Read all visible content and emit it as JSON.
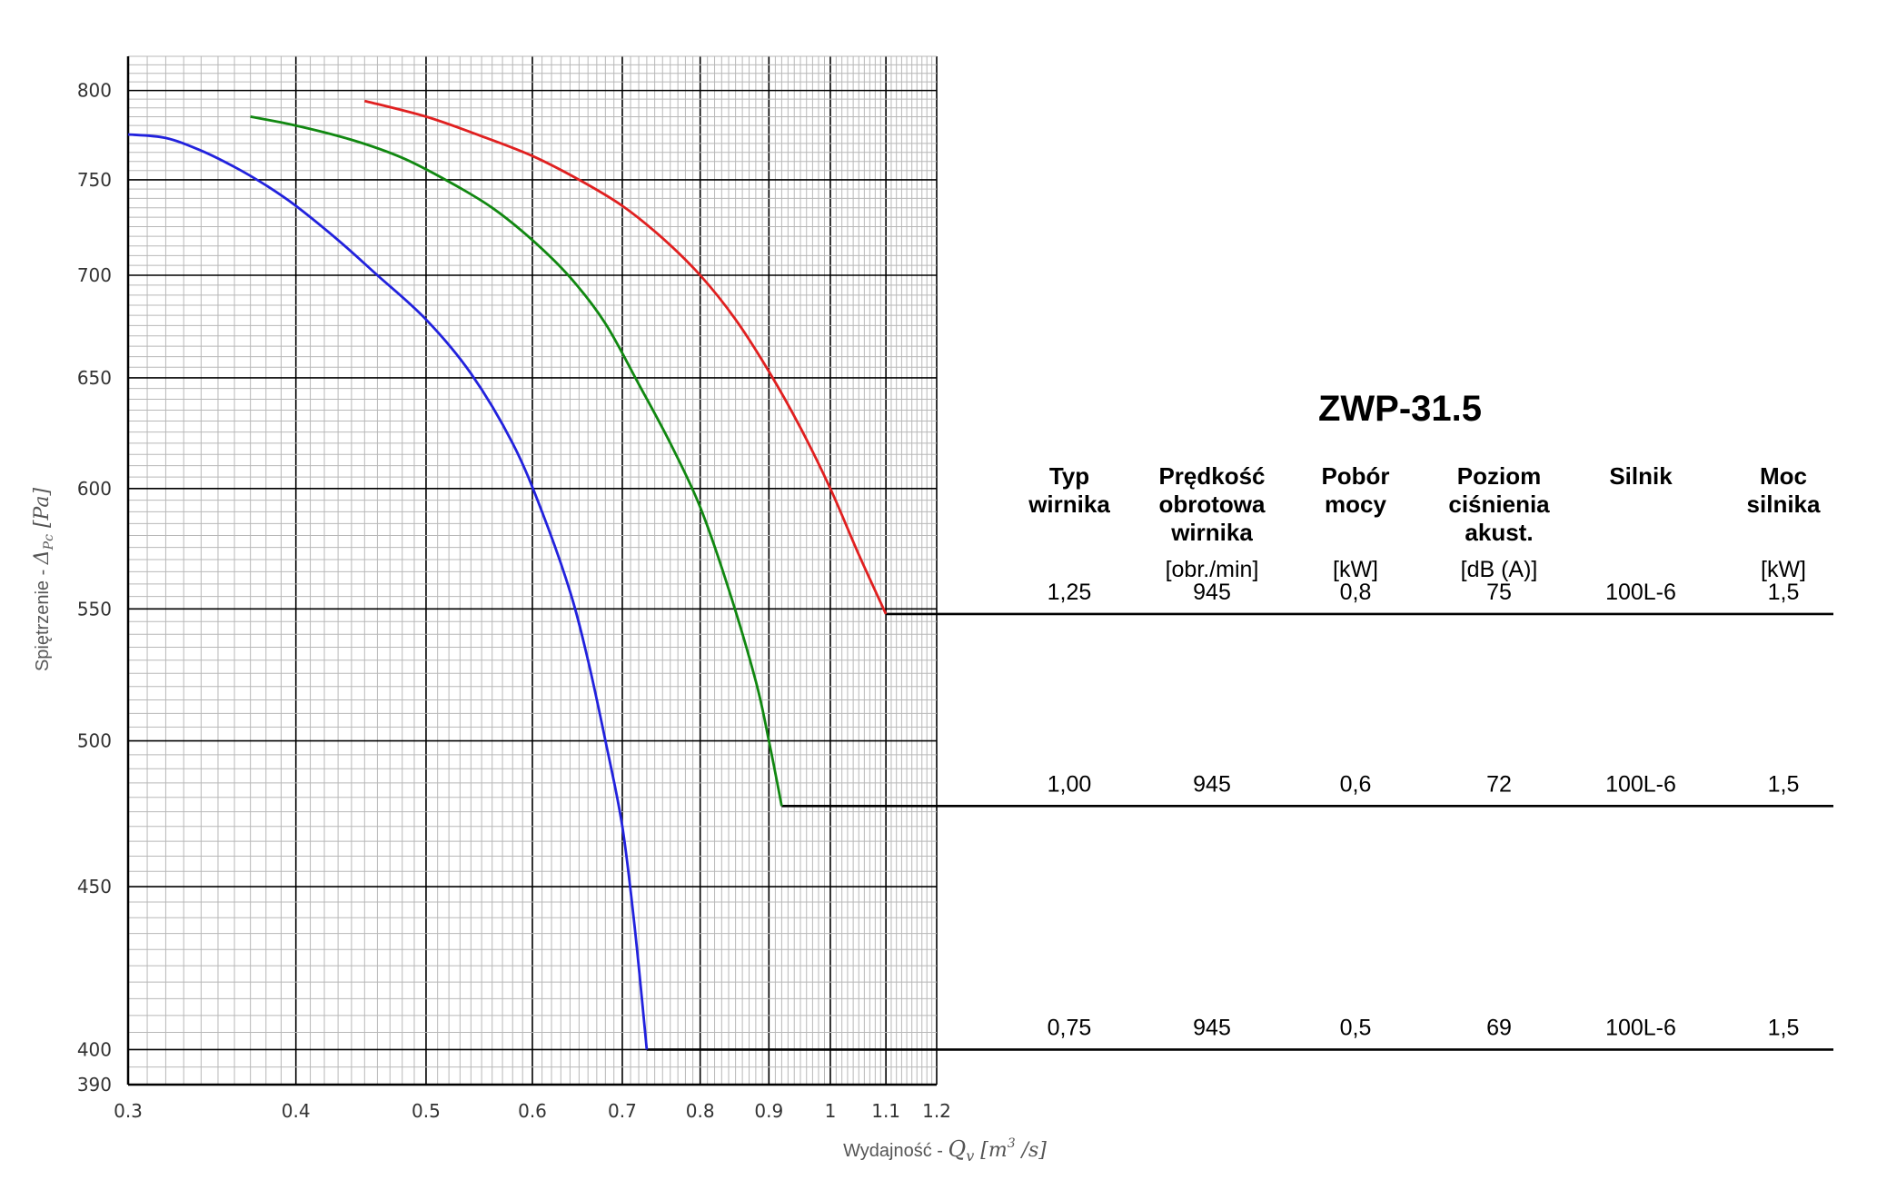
{
  "chart_data": {
    "type": "line",
    "x_scale": "log",
    "y_scale": "log",
    "xlim": [
      0.3,
      1.2
    ],
    "ylim": [
      390,
      820
    ],
    "grid": true,
    "xlabel": "Wydajność - ",
    "xlabel_symbol": "Q",
    "xlabel_subscript": "v",
    "xlabel_unit": " [m",
    "xlabel_unit_exp": "3",
    "xlabel_unit_end": " /s]",
    "ylabel": "Spiętrzenie - ",
    "ylabel_symbol": "Δ",
    "ylabel_subscript": "Pc",
    "ylabel_unit": " [Pa]",
    "x_ticks": [
      0.3,
      0.4,
      0.5,
      0.6,
      0.7,
      0.8,
      0.9,
      1,
      1.1,
      1.2
    ],
    "x_tick_labels": [
      "0.3",
      "0.4",
      "0.5",
      "0.6",
      "0.7",
      "0.8",
      "0.9",
      "1",
      "1.1",
      "1.2"
    ],
    "y_ticks": [
      390,
      400,
      450,
      500,
      550,
      600,
      650,
      700,
      750,
      800
    ],
    "y_tick_labels": [
      "390",
      "400",
      "450",
      "500",
      "550",
      "600",
      "650",
      "700",
      "750",
      "800"
    ],
    "series": [
      {
        "color": "#2222dd",
        "x": [
          0.3,
          0.32,
          0.34,
          0.36,
          0.38,
          0.4,
          0.43,
          0.46,
          0.5,
          0.54,
          0.58,
          0.61,
          0.64,
          0.66,
          0.68,
          0.7,
          0.715,
          0.73
        ],
        "y": [
          775,
          773,
          766,
          757,
          747,
          736,
          718,
          700,
          678,
          652,
          620,
          590,
          557,
          530,
          500,
          470,
          437,
          400
        ],
        "end_x": 1.2
      },
      {
        "color": "#118811",
        "x": [
          0.37,
          0.4,
          0.44,
          0.48,
          0.52,
          0.56,
          0.6,
          0.64,
          0.68,
          0.72,
          0.76,
          0.8,
          0.84,
          0.88,
          0.9,
          0.92
        ],
        "y": [
          785,
          780,
          772,
          762,
          749,
          735,
          718,
          699,
          676,
          647,
          620,
          592,
          558,
          522,
          500,
          477
        ],
        "end_x": 1.2
      },
      {
        "color": "#e02020",
        "x": [
          0.45,
          0.5,
          0.55,
          0.6,
          0.65,
          0.7,
          0.75,
          0.8,
          0.85,
          0.9,
          0.95,
          1.0,
          1.05,
          1.1
        ],
        "y": [
          794,
          785,
          774,
          763,
          750,
          736,
          719,
          700,
          678,
          653,
          627,
          600,
          572,
          548
        ],
        "end_x": 1.2
      }
    ]
  },
  "info": {
    "title": "ZWP-31.5",
    "headers": [
      [
        "Typ",
        "wirnika"
      ],
      [
        "Prędkość",
        "obrotowa",
        "wirnika"
      ],
      [
        "Pobór",
        "mocy"
      ],
      [
        "Poziom",
        "ciśnienia",
        "akust."
      ],
      [
        "Silnik"
      ],
      [
        "Moc",
        "silnika"
      ]
    ],
    "units": [
      "",
      "[obr./min]",
      "[kW]",
      "[dB (A)]",
      "",
      "[kW]"
    ],
    "rows": [
      [
        "1,25",
        "945",
        "0,8",
        "75",
        "100L-6",
        "1,5"
      ],
      [
        "1,00",
        "945",
        "0,6",
        "72",
        "100L-6",
        "1,5"
      ],
      [
        "0,75",
        "945",
        "0,5",
        "69",
        "100L-6",
        "1,5"
      ]
    ]
  }
}
